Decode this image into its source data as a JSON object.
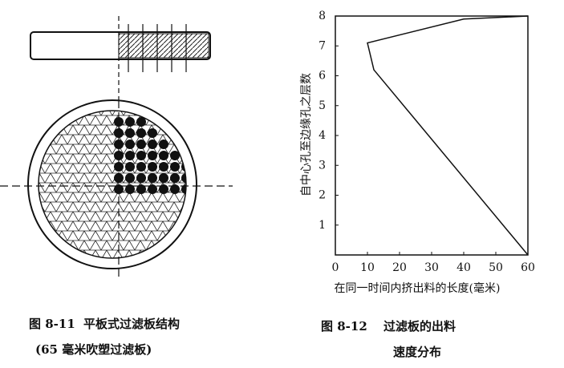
{
  "left_figure": {
    "caption_label": "图 8-11",
    "caption_title": "平板式过滤板结构",
    "caption_sub": "(65 毫米吹塑过滤板)"
  },
  "chart_data": {
    "type": "line",
    "caption_label": "图 8-12",
    "caption_title": "过滤板的出料",
    "caption_sub": "速度分布",
    "x_label": "在同一时间内挤出料的长度(毫米)",
    "y_label": "自中心孔至边缘孔之层数",
    "x": [
      60,
      12,
      10,
      40,
      60
    ],
    "values": [
      0,
      6.2,
      7.1,
      7.9,
      8
    ],
    "color": "#111111",
    "xlim": [
      0,
      60
    ],
    "xticks": [
      0,
      10,
      20,
      30,
      40,
      50,
      60
    ],
    "ylim": [
      0,
      8
    ],
    "yticks": [
      1,
      2,
      3,
      4,
      5,
      6,
      7,
      8
    ],
    "grid": false
  }
}
